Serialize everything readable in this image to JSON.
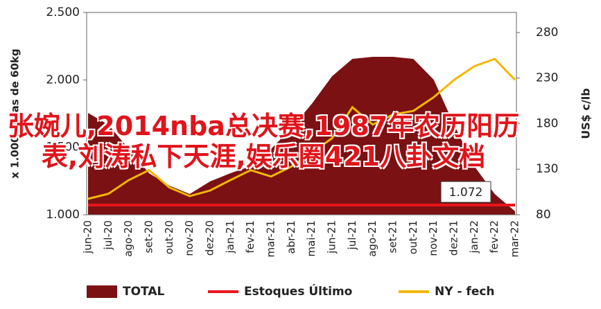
{
  "chart_data": {
    "type": "area-line",
    "y_label": "x 1.000 sacas de 60kg",
    "y2_label": "US$ c/lb",
    "categories": [
      "jun-20",
      "jul-20",
      "ago-20",
      "set-20",
      "out-20",
      "nov-20",
      "dez-20",
      "jan-21",
      "fev-21",
      "mar-21",
      "abr-21",
      "mai-21",
      "jun-21",
      "jul-21",
      "ago-21",
      "set-21",
      "out-21",
      "nov-21",
      "dez-21",
      "jan-22",
      "fev-22",
      "mar-22"
    ],
    "ylim": [
      1000,
      2500
    ],
    "yticks": [
      {
        "value": 1000,
        "label": "1.000"
      },
      {
        "value": 1500,
        "label": "1.500"
      },
      {
        "value": 2000,
        "label": "2.000"
      },
      {
        "value": 2500,
        "label": "2.500"
      }
    ],
    "y2lim": [
      80,
      302
    ],
    "y2ticks": [
      80,
      130,
      180,
      230,
      280
    ],
    "series": [
      {
        "name": "TOTAL",
        "color": "#7b1113",
        "kind": "area",
        "values": [
          1755,
          1668,
          1488,
          1308,
          1216,
          1154,
          1247,
          1308,
          1360,
          1488,
          1642,
          1822,
          2027,
          2156,
          2171,
          2171,
          2156,
          2002,
          1668,
          1360,
          1154,
          1026
        ]
      },
      {
        "name": "Estoques Último",
        "color": "#e8141b",
        "kind": "line",
        "values": [
          1072,
          1072,
          1072,
          1072,
          1072,
          1072,
          1072,
          1072,
          1072,
          1072,
          1072,
          1072,
          1072,
          1072,
          1072,
          1072,
          1072,
          1072,
          1072,
          1072,
          1072,
          1072
        ]
      },
      {
        "name": "NY - fech",
        "color": "#f2b705",
        "kind": "line",
        "axis": "y2",
        "values": [
          97.5,
          103,
          118,
          129,
          110,
          100.5,
          106.6,
          118,
          129,
          122,
          133,
          148,
          164,
          198,
          179,
          190,
          194,
          209,
          228,
          243,
          251,
          228
        ]
      }
    ],
    "annotation": "1.072",
    "overlay_text": "张婉儿,2014nba总决赛,1987年农历阳历表,刘涛私下天涯,娱乐圈421八卦文档"
  }
}
